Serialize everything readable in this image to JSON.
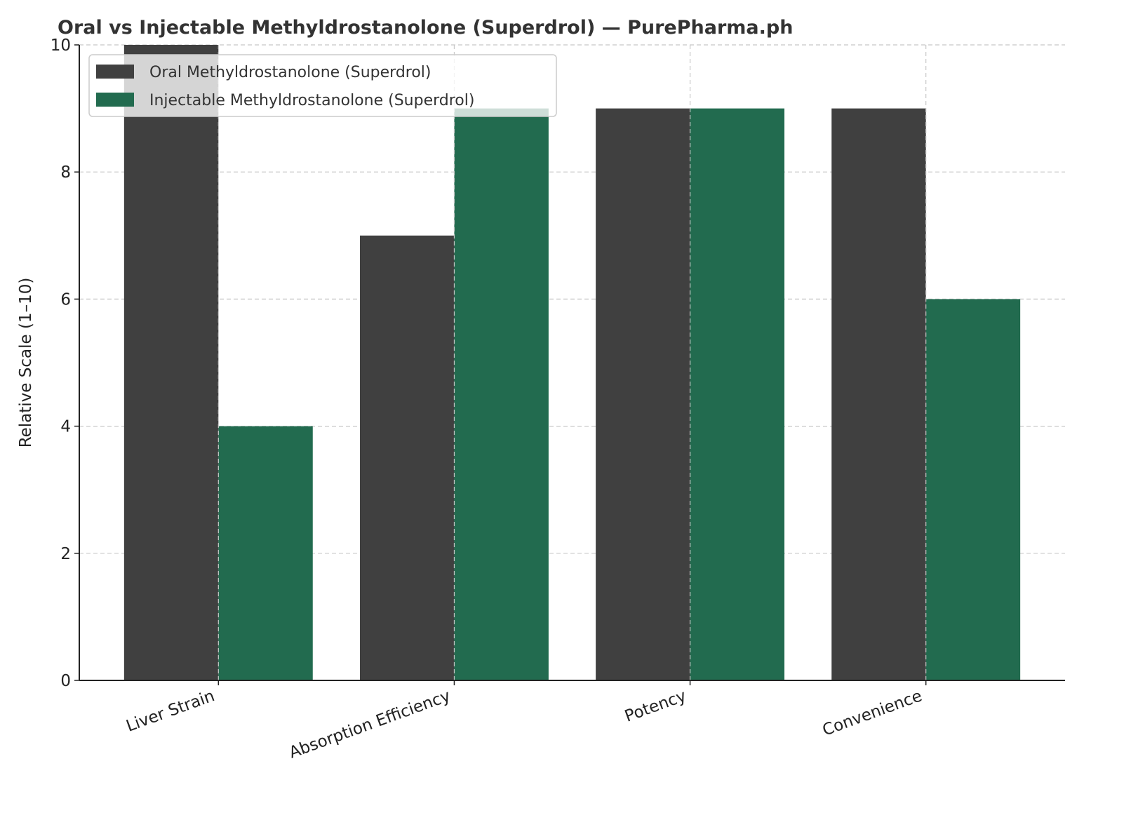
{
  "chart_data": {
    "type": "bar",
    "title": "Oral vs Injectable Methyldrostanolone (Superdrol) — PurePharma.ph",
    "xlabel": "",
    "ylabel": "Relative Scale (1–10)",
    "categories": [
      "Liver Strain",
      "Absorption Efficiency",
      "Potency",
      "Convenience"
    ],
    "series": [
      {
        "name": "Oral Methyldrostanolone (Superdrol)",
        "values": [
          10,
          7,
          9,
          9
        ],
        "color": "#404040"
      },
      {
        "name": "Injectable Methyldrostanolone (Superdrol)",
        "values": [
          4,
          9,
          9,
          6
        ],
        "color": "#226b4f"
      }
    ],
    "ylim": [
      0,
      10
    ],
    "yticks": [
      0,
      2,
      4,
      6,
      8,
      10
    ],
    "grid": true,
    "legend_position": "top-left"
  }
}
